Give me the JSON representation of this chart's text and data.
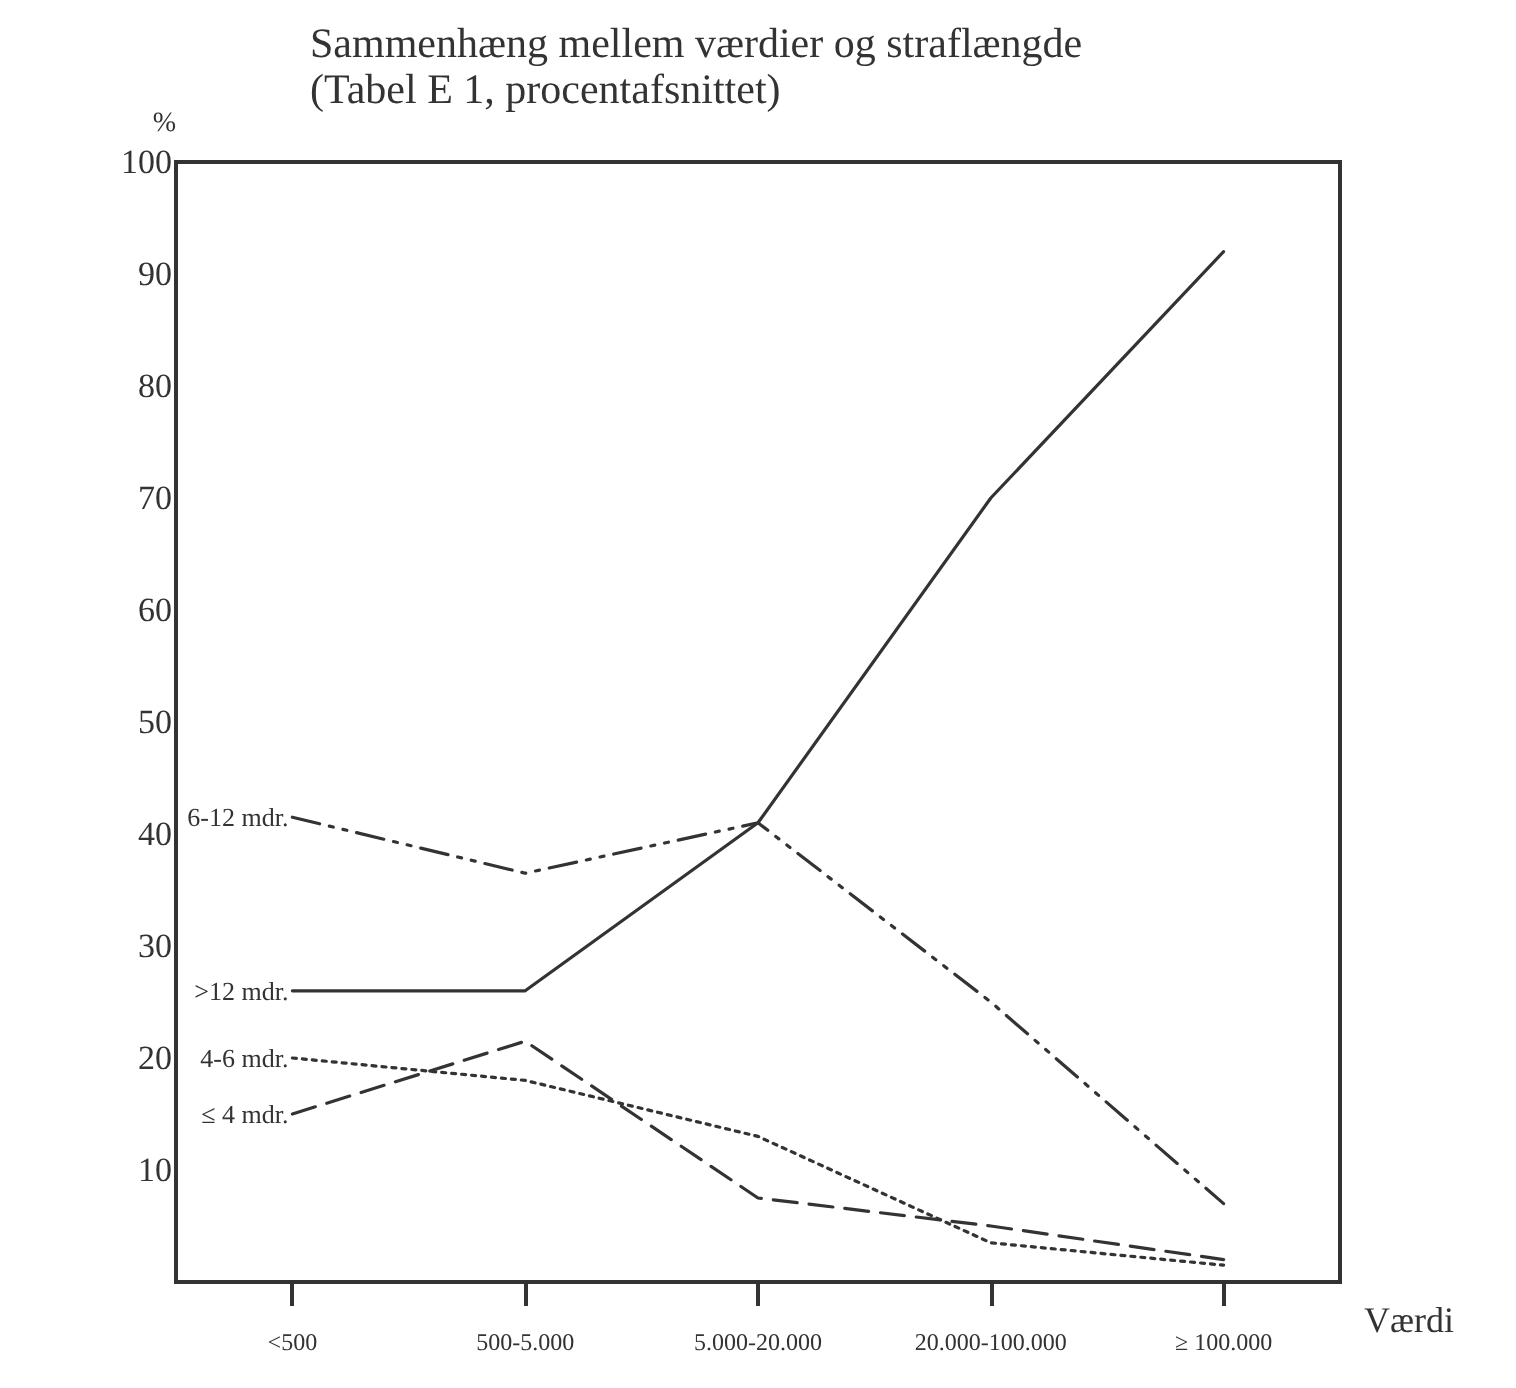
{
  "chart_data": {
    "type": "line",
    "title": "Sammenhæng mellem værdier og straflængde",
    "subtitle": "(Tabel E 1, procentafsnittet)",
    "xlabel": "Værdi",
    "ylabel": "%",
    "categories": [
      "<500",
      "500-5.000",
      "5.000-20.000",
      "20.000-100.000",
      "≥ 100.000"
    ],
    "series": [
      {
        "name": "6-12 mdr.",
        "color": "#333333",
        "line_style": "dashdot",
        "values": [
          41.5,
          36.5,
          41,
          25,
          7
        ]
      },
      {
        "name": ">12 mdr.",
        "color": "#333333",
        "line_style": "solid",
        "values": [
          26,
          26,
          41,
          70,
          92
        ]
      },
      {
        "name": "4-6 mdr.",
        "color": "#333333",
        "line_style": "dotted",
        "values": [
          20,
          18,
          13,
          3.5,
          1.5
        ]
      },
      {
        "name": "≤ 4 mdr.",
        "color": "#333333",
        "line_style": "dashed",
        "values": [
          15,
          21.5,
          7.5,
          5,
          2
        ]
      }
    ],
    "ylim": [
      0,
      100
    ],
    "yticks": [
      10,
      20,
      30,
      40,
      50,
      60,
      70,
      80,
      90,
      100
    ],
    "grid": false,
    "legend": false,
    "marker": "none"
  }
}
